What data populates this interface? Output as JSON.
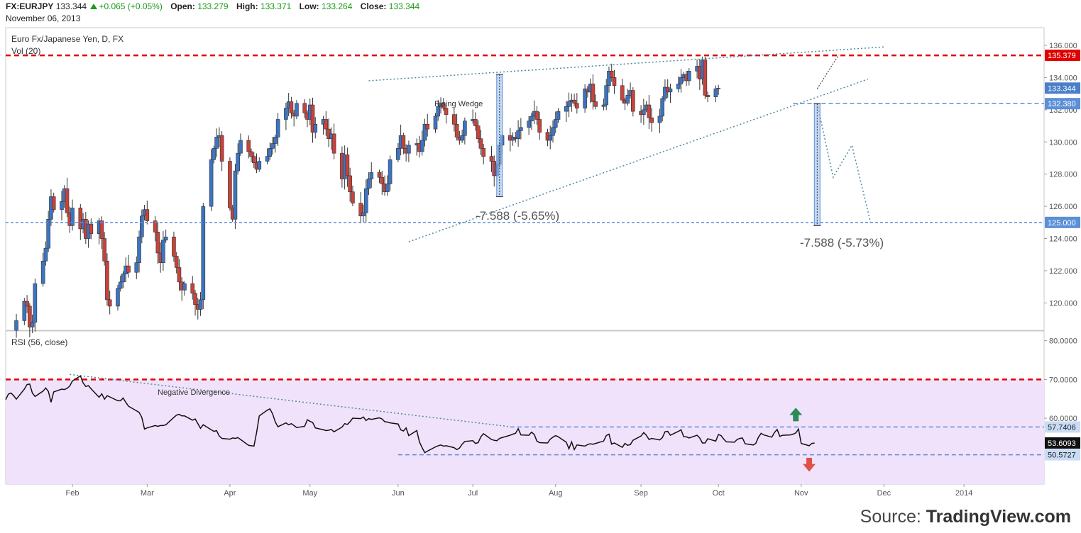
{
  "header": {
    "symbol": "FX:EURJPY",
    "price": "133.344",
    "change": "+0.065 (+0.05%)",
    "open_label": "Open:",
    "open": "133.279",
    "high_label": "High:",
    "high": "133.371",
    "low_label": "Low:",
    "low": "133.264",
    "close_label": "Close:",
    "close": "133.344",
    "date": "November 06, 2013"
  },
  "source": {
    "prefix": "Source:",
    "brand": "TradingView.com"
  },
  "colors": {
    "up_candle": "#3b74c4",
    "down_candle": "#c9423a",
    "resistance": "#e00000",
    "support_line": "#5b8fd8",
    "rsi_fill": "#f1e2fb",
    "price_tag_blue": "#5b8fd8",
    "price_tag_red": "#e00000"
  },
  "chart_data": [
    {
      "type": "candlestick",
      "title": "Euro Fx/Japanese Yen, D, FX",
      "subtitle": "Vol (20)",
      "ylim": [
        118.3,
        137.1
      ],
      "yticks": [
        120,
        122,
        124,
        126,
        128,
        130,
        132,
        134,
        136
      ],
      "ytick_labels": [
        "120.000",
        "122.000",
        "124.000",
        "126.000",
        "128.000",
        "130.000",
        "132.000",
        "134.000",
        "136.000"
      ],
      "grid": false,
      "x_axis": {
        "range": [
          "2013-01-07",
          "2014-01-31"
        ],
        "ticks": [
          {
            "label": "Feb",
            "date": "2013-02-01"
          },
          {
            "label": "Mar",
            "date": "2013-03-01"
          },
          {
            "label": "Apr",
            "date": "2013-04-01"
          },
          {
            "label": "May",
            "date": "2013-05-01"
          },
          {
            "label": "Jun",
            "date": "2013-06-03"
          },
          {
            "label": "Jul",
            "date": "2013-07-01"
          },
          {
            "label": "Aug",
            "date": "2013-08-01"
          },
          {
            "label": "Sep",
            "date": "2013-09-02"
          },
          {
            "label": "Oct",
            "date": "2013-10-01"
          },
          {
            "label": "Nov",
            "date": "2013-11-01"
          },
          {
            "label": "Dec",
            "date": "2013-12-02"
          },
          {
            "label": "2014",
            "date": "2014-01-01"
          }
        ]
      },
      "series": [
        {
          "closes_start_date": "2013-01-11",
          "start_open": 118.3,
          "closes": [
            118.9,
            120.1,
            119.8,
            118.5,
            118.8,
            121.2,
            122.6,
            123.4,
            125.2,
            126.6,
            125.8,
            126.3,
            127.1,
            125.6,
            124.8,
            125.9,
            124.6,
            125.2,
            124.0,
            124.9,
            124.3,
            125.1,
            124.0,
            122.6,
            120.2,
            119.8,
            120.9,
            121.3,
            121.8,
            122.3,
            121.9,
            122.5,
            124.1,
            125.4,
            125.8,
            125.1,
            124.4,
            123.1,
            122.5,
            123.9,
            124.1,
            122.9,
            122.2,
            121.3,
            120.8,
            121.2,
            120.6,
            119.9,
            119.6,
            120.2,
            126.0,
            128.9,
            129.6,
            130.3,
            130.4,
            128.8,
            125.9,
            125.2,
            128.2,
            129.3,
            130.1,
            129.4,
            129.1,
            128.7,
            128.3,
            128.8,
            129.1,
            129.6,
            129.9,
            130.3,
            131.4,
            132.1,
            132.5,
            131.8,
            131.6,
            132.4,
            131.8,
            131.4,
            132.3,
            130.6,
            131.1,
            131.4,
            130.8,
            130.2,
            130.5,
            129.3,
            127.7,
            129.2,
            127.9,
            126.9,
            126.2,
            125.4,
            125.6,
            127.1,
            127.7,
            128.1,
            127.8,
            127.4,
            126.9,
            127.4,
            128.9,
            129.6,
            130.4,
            129.6,
            129.3,
            129.8,
            129.9,
            129.4,
            130.1,
            131.1,
            130.8,
            131.6,
            132.2,
            132.4,
            132.1,
            131.7,
            131.1,
            130.3,
            130.1,
            130.4,
            131.3,
            131.4,
            131.0,
            130.2,
            129.6,
            129.1,
            128.8,
            127.9,
            128.6,
            129.8,
            130.4,
            130.1,
            130.3,
            130.2,
            130.7,
            130.9,
            131.3,
            131.6,
            131.9,
            131.4,
            130.6,
            130.1,
            130.4,
            130.9,
            131.4,
            131.9,
            132.2,
            132.5,
            132.6,
            132.4,
            132.1,
            133.3,
            133.1,
            133.6,
            132.5,
            132.2,
            132.3,
            133.5,
            134.4,
            134.0,
            133.5,
            132.6,
            132.4,
            132.9,
            133.2,
            131.9,
            131.7,
            132.0,
            132.3,
            131.5,
            131.2,
            131.6,
            132.7,
            133.4,
            133.1,
            133.3,
            133.6,
            134.0,
            134.2,
            133.8,
            134.4,
            134.7,
            133.9,
            135.1,
            132.9,
            132.8,
            133.3,
            133.344
          ]
        }
      ],
      "annotations": {
        "resistance_value": 135.379,
        "support_value": 125.0,
        "breakdown_level": 132.38,
        "current_value": 133.344,
        "price_tags": [
          "135.379",
          "133.344",
          "132.380",
          "125.000"
        ],
        "wedge_label": "Rising Wedge",
        "measure_left": "-7.588 (-5.65%)",
        "measure_right": "-7.588 (-5.73%)",
        "measure_left_range": [
          126.6,
          134.2
        ],
        "measure_right_range": [
          124.8,
          132.38
        ],
        "wedge_upper": [
          {
            "date": "2013-05-23",
            "value": 133.8
          },
          {
            "date": "2013-12-02",
            "value": 135.9
          }
        ],
        "wedge_lower": [
          {
            "date": "2013-06-07",
            "value": 123.8
          },
          {
            "date": "2013-11-26",
            "value": 133.9
          }
        ],
        "projection": [
          {
            "date": "2013-11-07",
            "value": 132.38
          },
          {
            "date": "2013-11-13",
            "value": 127.8
          },
          {
            "date": "2013-11-20",
            "value": 129.8
          },
          {
            "date": "2013-11-27",
            "value": 125.0
          }
        ],
        "upside_projection": [
          {
            "date": "2013-11-07",
            "value": 133.3
          },
          {
            "date": "2013-11-15",
            "value": 135.4
          }
        ]
      }
    },
    {
      "type": "line",
      "title": "RSI (56, close)",
      "ylim": [
        43.0,
        82.5
      ],
      "yticks": [
        60,
        70,
        80
      ],
      "ytick_labels": [
        "60.0000",
        "70.0000",
        "80.0000"
      ],
      "shaded_band": [
        40,
        70
      ],
      "overbought_value": 70.0,
      "range_high": 57.7406,
      "range_low": 50.5727,
      "current_value": 53.6093,
      "value_tags": [
        "57.7406",
        "53.6093",
        "50.5727"
      ],
      "divergence_label": "Negative Divergence",
      "divergence_line": [
        {
          "date": "2013-01-31",
          "value": 71.3
        },
        {
          "date": "2013-07-15",
          "value": 57.8
        }
      ],
      "series": [
        {
          "start_date": "2013-01-07",
          "values": [
            64.8,
            66.2,
            66.5,
            65.8,
            64.9,
            67.5,
            68.7,
            68.8,
            66.5,
            65.6,
            67.0,
            67.8,
            66.9,
            64.1,
            66.8,
            67.5,
            67.4,
            67.7,
            68.3,
            69.6,
            70.9,
            69.1,
            68.2,
            68.4,
            67.6,
            65.4,
            66.3,
            64.9,
            65.8,
            65.5,
            64.5,
            64.5,
            65.2,
            64.1,
            63.1,
            61.9,
            61.5,
            60.2,
            57.2,
            57.5,
            58.1,
            57.9,
            58.1,
            58.1,
            58.3,
            60.2,
            60.8,
            61.0,
            60.6,
            60.6,
            59.5,
            59.8,
            58.6,
            57.4,
            58.3,
            57.0,
            56.6,
            56.8,
            55.4,
            54.8,
            54.6,
            54.9,
            54.8,
            55.0,
            54.5,
            53.0,
            52.9,
            52.8,
            56.3,
            60.6,
            62.1,
            62.4,
            61.1,
            59.0,
            57.8,
            58.8,
            58.3,
            58.6,
            58.1,
            57.6,
            57.9,
            59.6,
            59.2,
            58.9,
            57.5,
            57.0,
            56.8,
            56.9,
            57.1,
            56.5,
            57.7,
            58.6,
            58.4,
            59.1,
            60.0,
            59.9,
            60.3,
            59.4,
            59.9,
            59.7,
            60.1,
            59.8,
            59.1,
            59.0,
            58.8,
            58.5,
            57.0,
            56.7,
            57.5,
            55.5,
            56.8,
            53.9,
            52.4,
            51.1,
            51.5,
            52.6,
            52.9,
            53.1,
            52.8,
            52.9,
            52.4,
            51.9,
            52.3,
            53.3,
            54.0,
            54.2,
            53.5,
            53.7,
            55.2,
            56.0,
            54.5,
            54.3,
            54.2,
            54.8,
            55.0,
            55.6,
            55.9,
            56.1,
            57.3,
            55.7,
            55.6,
            56.4,
            55.8,
            54.1,
            53.7,
            53.6,
            54.6,
            55.1,
            55.5,
            55.2,
            53.8,
            52.1,
            53.9,
            51.9,
            53.1,
            52.8,
            53.2,
            53.4,
            53.3,
            53.5,
            54.1,
            55.5,
            55.9,
            53.3,
            53.6,
            52.5,
            53.5,
            53.0,
            53.2,
            54.3,
            55.4,
            56.3,
            55.6,
            54.5,
            54.8,
            54.4,
            55.0,
            56.5,
            56.6,
            55.6,
            56.6,
            57.0,
            55.2,
            55.2,
            54.9,
            55.6,
            54.9,
            53.6,
            53.6,
            54.7,
            54.1,
            55.8,
            55.5,
            54.6,
            53.9,
            53.8,
            54.5,
            54.8,
            54.9,
            53.4,
            53.1,
            53.5,
            55.1,
            56.1,
            55.7,
            55.1,
            56.3,
            57.1,
            55.3,
            55.6,
            55.7,
            55.9,
            56.2,
            57.2,
            53.5,
            52.9,
            53.5,
            53.6093
          ]
        }
      ]
    }
  ]
}
